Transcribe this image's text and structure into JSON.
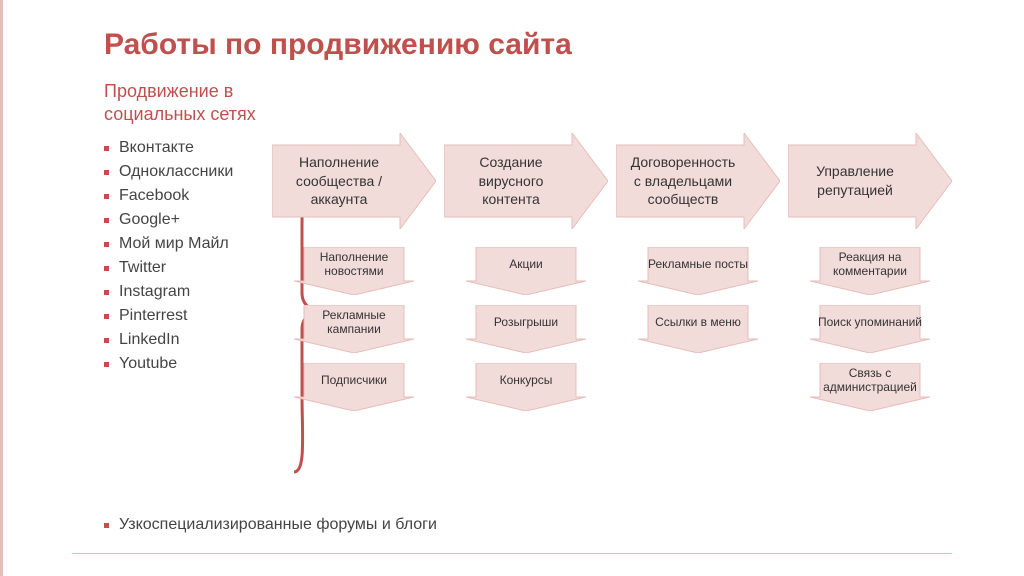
{
  "colors": {
    "accent": "#c0504d",
    "arrow_fill": "#f2dcda",
    "arrow_stroke": "#e6bdbb",
    "text": "#333333",
    "bullet_text": "#444444"
  },
  "title": "Работы по продвижению сайта",
  "subtitle": "Продвижение в\nсоциальных сетях",
  "networks": [
    "Вконтакте",
    "Одноклассники",
    "Facebook",
    "Google+",
    "Мой мир Майл",
    "Twitter",
    "Instagram",
    "Pinterrest",
    "LinkedIn",
    "Youtube"
  ],
  "footer_item": "Узкоспециализированные форумы и блоги",
  "flow": {
    "type": "flowchart",
    "direction": "right",
    "steps": [
      {
        "label": "Наполнение сообщества / аккаунта",
        "subs": [
          "Наполнение новостями",
          "Рекламные кампании",
          "Подписчики"
        ]
      },
      {
        "label": "Создание вирусного контента",
        "subs": [
          "Акции",
          "Розыгрыши",
          "Конкурсы"
        ]
      },
      {
        "label": "Договоренность с владельцами сообществ",
        "subs": [
          "Рекламные посты",
          "Ссылки в меню"
        ]
      },
      {
        "label": "Управление репутацией",
        "subs": [
          "Реакция на комментарии",
          "Поиск упоминаний",
          "Связь с администрацией"
        ]
      }
    ],
    "arrow_fill": "#f2dcda",
    "arrow_stroke": "#e6bdbb",
    "main_arrow_w": 164,
    "main_arrow_h": 96,
    "sub_arrow_w": 120,
    "sub_arrow_h": 48,
    "main_fontsize": 14,
    "sub_fontsize": 12
  }
}
